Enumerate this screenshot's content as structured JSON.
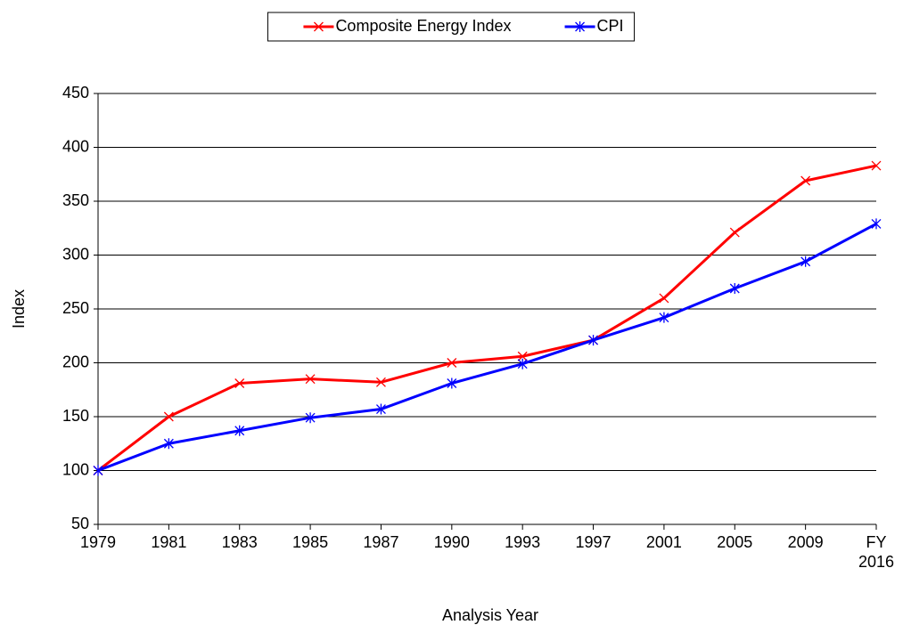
{
  "chart_data": {
    "type": "line",
    "x_label": "Analysis Year",
    "y_label": "Index",
    "categories": [
      "1979",
      "1981",
      "1983",
      "1985",
      "1987",
      "1990",
      "1993",
      "1997",
      "2001",
      "2005",
      "2009",
      "FY 2016"
    ],
    "series": [
      {
        "name": "Composite Energy Index",
        "color": "#ff0000",
        "marker": "x",
        "values": [
          100,
          150,
          181,
          185,
          182,
          200,
          206,
          221,
          260,
          321,
          369,
          383
        ]
      },
      {
        "name": "CPI",
        "color": "#0000ff",
        "marker": "asterisk",
        "values": [
          100,
          125,
          137,
          149,
          157,
          181,
          199,
          221,
          242,
          269,
          294,
          329
        ]
      }
    ],
    "ylim": [
      50,
      450
    ],
    "yticks": [
      50,
      100,
      150,
      200,
      250,
      300,
      350,
      400,
      450
    ],
    "grid": true,
    "legend": "top"
  }
}
